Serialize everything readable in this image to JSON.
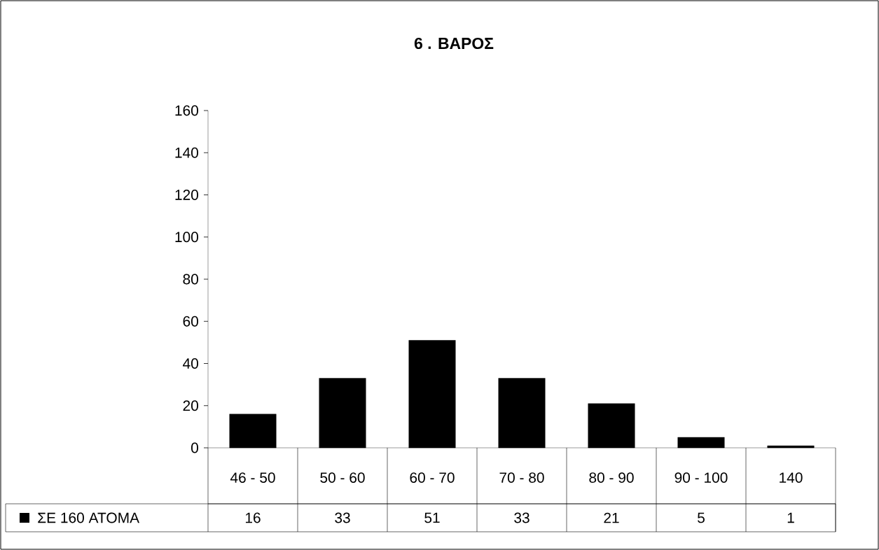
{
  "chart_data": {
    "type": "bar",
    "title": "6 . ΒΑΡΟΣ",
    "categories": [
      "46 - 50",
      "50 - 60",
      "60 - 70",
      "70 - 80",
      "80 - 90",
      "90 - 100",
      "140"
    ],
    "series": [
      {
        "name": "ΣΕ 160 ΑΤΟΜΑ",
        "color": "#000000",
        "values": [
          16,
          33,
          51,
          33,
          21,
          5,
          1
        ]
      }
    ],
    "ylim": [
      0,
      160
    ],
    "yticks": [
      0,
      20,
      40,
      60,
      80,
      100,
      120,
      140,
      160
    ],
    "data_labels": true,
    "legend": "bottom",
    "grid": false
  }
}
